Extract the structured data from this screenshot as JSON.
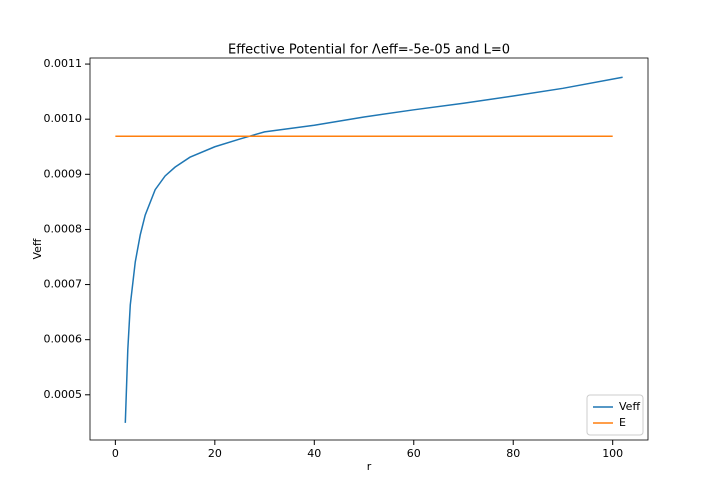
{
  "chart_data": {
    "type": "line",
    "title": "Effective Potential for Λeff=-5e-05 and L=0",
    "xlabel": "r",
    "ylabel": "Veff",
    "series": [
      {
        "name": "Veff",
        "color": "#1f77b4",
        "x": [
          2,
          2.5,
          3,
          4,
          5,
          6,
          8,
          10,
          12,
          15,
          20,
          25,
          30,
          40,
          50,
          60,
          70,
          80,
          90,
          102
        ],
        "values": [
          0.000449,
          0.000582,
          0.000663,
          0.000741,
          0.00079,
          0.000826,
          0.000872,
          0.000897,
          0.000913,
          0.000931,
          0.00095,
          0.000964,
          0.000977,
          0.000989,
          0.001004,
          0.001017,
          0.001029,
          0.001042,
          0.001056,
          0.001076
        ]
      },
      {
        "name": "E",
        "color": "#ff7f0e",
        "x": [
          0,
          100
        ],
        "values": [
          0.000969,
          0.000969
        ]
      }
    ],
    "xlim": [
      -5.1,
      107.1
    ],
    "xticks": [
      0,
      20,
      40,
      60,
      80,
      100
    ],
    "ylim": [
      0.000418,
      0.001111
    ],
    "yticks": [
      0.0005,
      0.0006,
      0.0007,
      0.0008,
      0.0009,
      {
        "value": 0.001,
        "label": "0.0010"
      },
      0.0011
    ],
    "legend": "lower right"
  }
}
